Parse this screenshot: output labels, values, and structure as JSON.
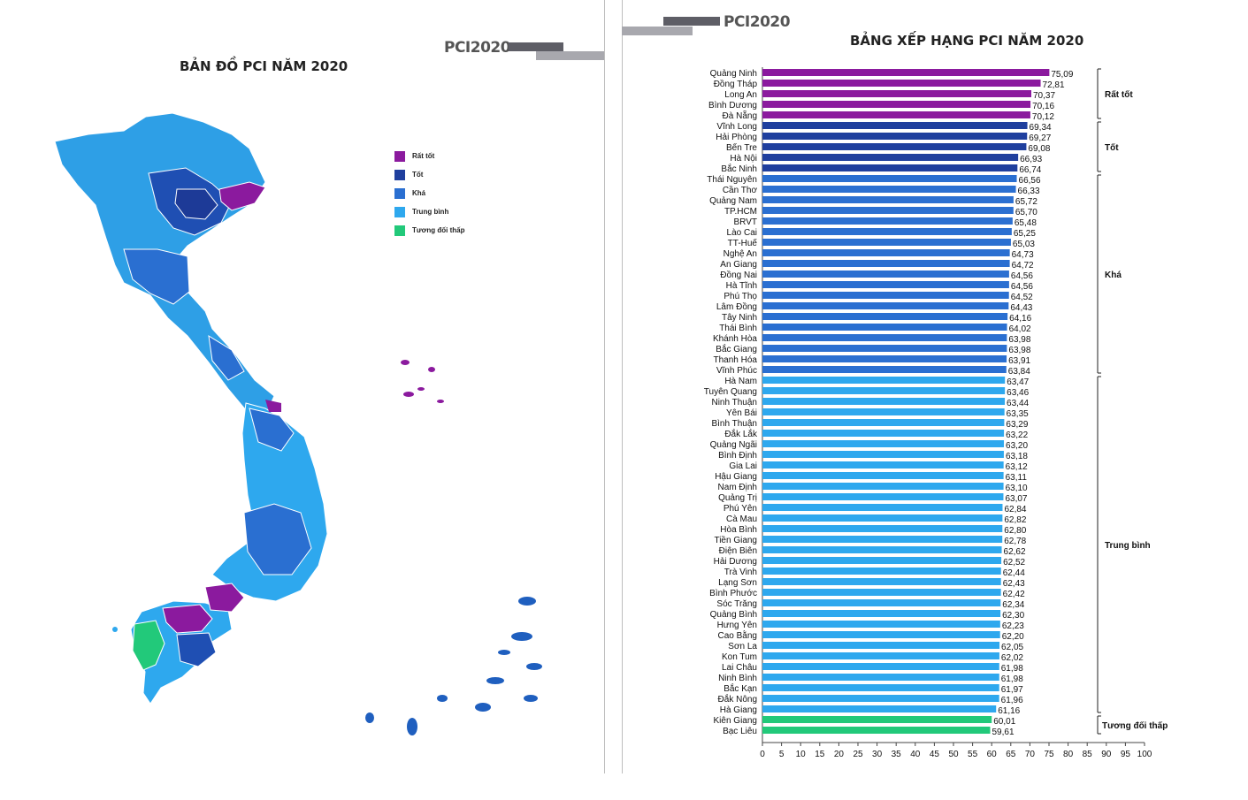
{
  "left_panel": {
    "brand": "PCI2020",
    "title": "BẢN ĐỒ PCI NĂM 2020",
    "legend": [
      {
        "label": "Rất tốt",
        "color": "#8b1a9e"
      },
      {
        "label": "Tốt",
        "color": "#1f3f9e"
      },
      {
        "label": "Khá",
        "color": "#2a6fd1"
      },
      {
        "label": "Trung bình",
        "color": "#2ea8ee"
      },
      {
        "label": "Tương đối thấp",
        "color": "#22c97a"
      }
    ]
  },
  "right_panel": {
    "brand": "PCI2020",
    "title": "BẢNG XẾP HẠNG PCI NĂM 2020"
  },
  "chart_data": {
    "type": "bar",
    "orientation": "horizontal",
    "title": "BẢNG XẾP HẠNG PCI NĂM 2020",
    "xlim": [
      0,
      100
    ],
    "xticks": [
      0,
      5,
      10,
      15,
      20,
      25,
      30,
      35,
      40,
      45,
      50,
      55,
      60,
      65,
      70,
      75,
      80,
      85,
      90,
      95,
      100
    ],
    "categories": [
      "Quảng Ninh",
      "Đồng Tháp",
      "Long An",
      "Bình Dương",
      "Đà Nẵng",
      "Vĩnh Long",
      "Hải Phòng",
      "Bến Tre",
      "Hà Nội",
      "Bắc Ninh",
      "Thái Nguyên",
      "Cần Thơ",
      "Quảng Nam",
      "TP.HCM",
      "BRVT",
      "Lào Cai",
      "TT-Huế",
      "Nghệ An",
      "An Giang",
      "Đồng Nai",
      "Hà Tĩnh",
      "Phú Thọ",
      "Lâm Đồng",
      "Tây Ninh",
      "Thái Bình",
      "Khánh Hòa",
      "Bắc Giang",
      "Thanh Hóa",
      "Vĩnh Phúc",
      "Hà Nam",
      "Tuyên Quang",
      "Ninh Thuận",
      "Yên Bái",
      "Bình Thuận",
      "Đắk Lắk",
      "Quảng Ngãi",
      "Bình Định",
      "Gia Lai",
      "Hậu Giang",
      "Nam Định",
      "Quảng Trị",
      "Phú Yên",
      "Cà Mau",
      "Hòa Bình",
      "Tiền Giang",
      "Điện Biên",
      "Hải Dương",
      "Trà Vinh",
      "Lạng Sơn",
      "Bình Phước",
      "Sóc Trăng",
      "Quảng Bình",
      "Hưng Yên",
      "Cao Bằng",
      "Sơn La",
      "Kon Tum",
      "Lai Châu",
      "Ninh Bình",
      "Bắc Kạn",
      "Đắk Nông",
      "Hà Giang",
      "Kiên Giang",
      "Bạc Liêu"
    ],
    "values": [
      75.09,
      72.81,
      70.37,
      70.16,
      70.12,
      69.34,
      69.27,
      69.08,
      66.93,
      66.74,
      66.56,
      66.33,
      65.72,
      65.7,
      65.48,
      65.25,
      65.03,
      64.73,
      64.72,
      64.56,
      64.56,
      64.52,
      64.43,
      64.16,
      64.02,
      63.98,
      63.98,
      63.91,
      63.84,
      63.47,
      63.46,
      63.44,
      63.35,
      63.29,
      63.22,
      63.2,
      63.18,
      63.12,
      63.11,
      63.1,
      63.07,
      62.84,
      62.82,
      62.8,
      62.78,
      62.62,
      62.52,
      62.44,
      62.43,
      62.42,
      62.34,
      62.3,
      62.23,
      62.2,
      62.05,
      62.02,
      61.98,
      61.98,
      61.97,
      61.96,
      61.16,
      60.01,
      59.61
    ],
    "value_labels": [
      "75,09",
      "72,81",
      "70,37",
      "70,16",
      "70,12",
      "69,34",
      "69,27",
      "69,08",
      "66,93",
      "66,74",
      "66,56",
      "66,33",
      "65,72",
      "65,70",
      "65,48",
      "65,25",
      "65,03",
      "64,73",
      "64,72",
      "64,56",
      "64,56",
      "64,52",
      "64,43",
      "64,16",
      "64,02",
      "63,98",
      "63,98",
      "63,91",
      "63,84",
      "63,47",
      "63,46",
      "63,44",
      "63,35",
      "63,29",
      "63,22",
      "63,20",
      "63,18",
      "63,12",
      "63,11",
      "63,10",
      "63,07",
      "62,84",
      "62,82",
      "62,80",
      "62,78",
      "62,62",
      "62,52",
      "62,44",
      "62,43",
      "62,42",
      "62,34",
      "62,30",
      "62,23",
      "62,20",
      "62,05",
      "62,02",
      "61,98",
      "61,98",
      "61,97",
      "61,96",
      "61,16",
      "60,01",
      "59,61"
    ],
    "groups": [
      {
        "label": "Rất tốt",
        "start": 0,
        "end": 4,
        "color": "#8b1a9e"
      },
      {
        "label": "Tốt",
        "start": 5,
        "end": 9,
        "color": "#1f3f9e"
      },
      {
        "label": "Khá",
        "start": 10,
        "end": 28,
        "color": "#2a6fd1"
      },
      {
        "label": "Trung bình",
        "start": 29,
        "end": 60,
        "color": "#2ea8ee"
      },
      {
        "label": "Tương đối thấp",
        "start": 61,
        "end": 62,
        "color": "#22c97a"
      }
    ]
  }
}
